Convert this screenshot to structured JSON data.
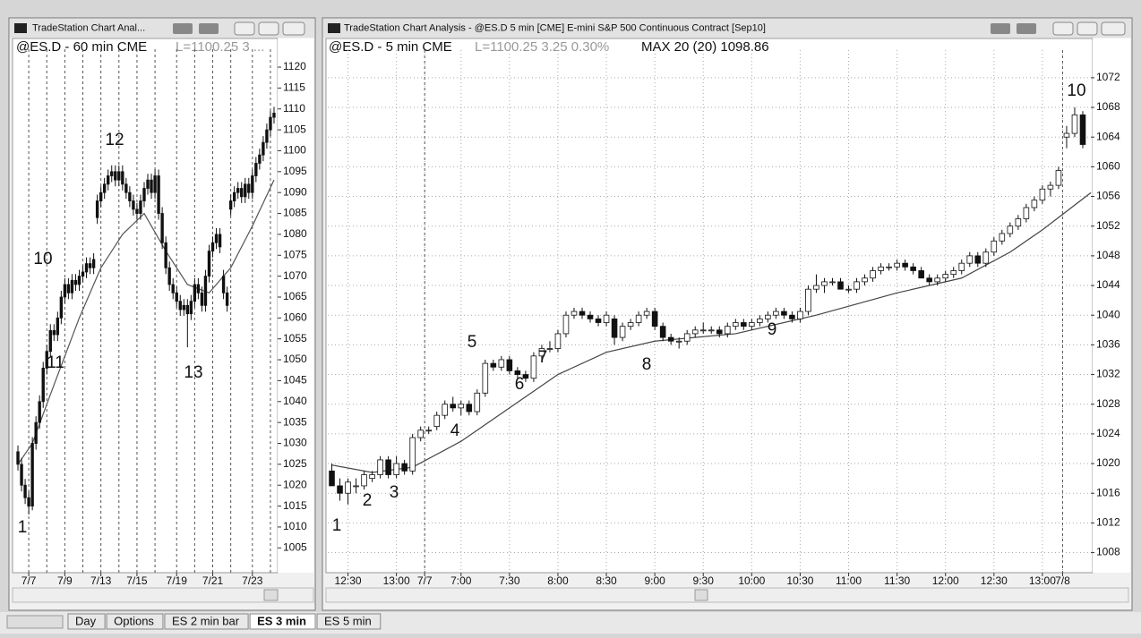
{
  "windows": [
    {
      "title": "TradeStation Chart Anal...",
      "symbol": "@ES.D - 60 min CME",
      "last": "L=1100.25  3 ..."
    },
    {
      "title": "TradeStation Chart Analysis - @ES.D 5 min [CME] E-mini S&P 500 Continuous Contract [Sep10]",
      "symbol": "@ES.D - 5 min CME",
      "last": "L=1100.25  3.25  0.30%",
      "study": "MAX 20 (20) 1098.86"
    }
  ],
  "tabs": [
    "Day",
    "Options",
    "ES 2 min bar",
    "ES 3 min",
    "ES 5 min"
  ],
  "chart_data": [
    {
      "type": "candlestick",
      "hollow_up": false,
      "grid": false,
      "up_color": "#111",
      "down_color": "#111",
      "ma_color": "#555",
      "candles": [
        [
          1028,
          1029.5,
          1023.5,
          1025
        ],
        [
          1025,
          1026.5,
          1018.5,
          1020
        ],
        [
          1020,
          1021.5,
          1015.5,
          1017
        ],
        [
          1017,
          1018.5,
          1013,
          1015
        ],
        [
          1015,
          1031.5,
          1014,
          1030
        ],
        [
          1030,
          1036.5,
          1028.5,
          1035
        ],
        [
          1035,
          1041.5,
          1033.5,
          1040
        ],
        [
          1040,
          1049.5,
          1038.5,
          1048
        ],
        [
          1048,
          1053.5,
          1046.5,
          1052
        ],
        [
          1052,
          1058.5,
          1050.5,
          1057
        ],
        [
          1057,
          1058.5,
          1054.5,
          1056
        ],
        [
          1056,
          1061.5,
          1054.5,
          1060
        ],
        [
          1060,
          1066.5,
          1058.5,
          1065
        ],
        [
          1065,
          1069.5,
          1063.5,
          1068
        ],
        [
          1068,
          1069.5,
          1064.5,
          1066
        ],
        [
          1066,
          1070.5,
          1064.5,
          1069
        ],
        [
          1069,
          1070.5,
          1066.5,
          1068
        ],
        [
          1068,
          1071.5,
          1066.5,
          1070
        ],
        [
          1070,
          1072.5,
          1068.5,
          1071
        ],
        [
          1071,
          1074.5,
          1069.5,
          1073
        ],
        [
          1073,
          1074.5,
          1070.5,
          1072
        ],
        [
          1072,
          1075.5,
          1070.5,
          1074
        ],
        [
          1084,
          1089.5,
          1082.5,
          1088
        ],
        [
          1088,
          1091.5,
          1086.5,
          1090
        ],
        [
          1090,
          1093.5,
          1088.5,
          1092
        ],
        [
          1092,
          1095.5,
          1090.5,
          1094
        ],
        [
          1094,
          1096.5,
          1092.5,
          1095
        ],
        [
          1095,
          1096.5,
          1091.5,
          1093
        ],
        [
          1093,
          1096.5,
          1091.5,
          1095
        ],
        [
          1095,
          1096.5,
          1090.5,
          1092
        ],
        [
          1092,
          1093.5,
          1088.5,
          1090
        ],
        [
          1090,
          1091.5,
          1086.5,
          1088
        ],
        [
          1088,
          1089.5,
          1084.5,
          1086
        ],
        [
          1086,
          1087.5,
          1083.5,
          1085
        ],
        [
          1085,
          1089.5,
          1083.5,
          1088
        ],
        [
          1088,
          1092.5,
          1086.5,
          1091
        ],
        [
          1091,
          1094.5,
          1089.5,
          1093
        ],
        [
          1093,
          1094.5,
          1088.5,
          1090
        ],
        [
          1090,
          1095.5,
          1088.5,
          1094
        ],
        [
          1094,
          1095.5,
          1083.5,
          1085
        ],
        [
          1085,
          1086.5,
          1076.5,
          1078
        ],
        [
          1078,
          1079.5,
          1070.5,
          1072
        ],
        [
          1072,
          1073.5,
          1066.5,
          1068
        ],
        [
          1068,
          1069.5,
          1064.5,
          1066
        ],
        [
          1066,
          1067.5,
          1062.5,
          1064
        ],
        [
          1064,
          1065.5,
          1060.5,
          1062
        ],
        [
          1062,
          1064.5,
          1060.5,
          1063
        ],
        [
          1063,
          1064.5,
          1053,
          1061
        ],
        [
          1061,
          1065.5,
          1059.5,
          1064
        ],
        [
          1064,
          1069.5,
          1062.5,
          1068
        ],
        [
          1068,
          1069.5,
          1064.5,
          1066
        ],
        [
          1066,
          1067.5,
          1061.5,
          1063
        ],
        [
          1063,
          1071.5,
          1061.5,
          1070
        ],
        [
          1070,
          1077.5,
          1068.5,
          1076
        ],
        [
          1076,
          1079.5,
          1074.5,
          1078
        ],
        [
          1078,
          1081.5,
          1076.5,
          1080
        ],
        [
          1080,
          1081.5,
          1075.5,
          1077
        ],
        [
          1070,
          1071.5,
          1064.5,
          1066
        ],
        [
          1066,
          1067.5,
          1061.5,
          1063
        ],
        [
          1086,
          1089.5,
          1084.5,
          1088
        ],
        [
          1088,
          1091.5,
          1086.5,
          1090
        ],
        [
          1090,
          1092.5,
          1088.5,
          1091
        ],
        [
          1091,
          1092.5,
          1087.5,
          1089
        ],
        [
          1089,
          1093.5,
          1087.5,
          1092
        ],
        [
          1092,
          1093.5,
          1088.5,
          1090
        ],
        [
          1090,
          1095.5,
          1088.5,
          1094
        ],
        [
          1094,
          1098.5,
          1092.5,
          1097
        ],
        [
          1097,
          1100.5,
          1095.5,
          1099
        ],
        [
          1099,
          1103.5,
          1097.5,
          1102
        ],
        [
          1102,
          1106.5,
          1100.5,
          1105
        ],
        [
          1105,
          1109.5,
          1103.5,
          1108
        ],
        [
          1108,
          1110.5,
          1106.5,
          1109
        ]
      ],
      "ma": {
        "x": [
          0,
          4,
          10,
          17,
          23,
          29,
          35,
          41,
          47,
          53,
          59,
          65,
          71
        ],
        "values": [
          1025,
          1030,
          1044,
          1060,
          1072,
          1080,
          1085,
          1076,
          1068,
          1066,
          1072,
          1082,
          1093
        ]
      },
      "xlim": [
        -1,
        72
      ],
      "xticks": [
        {
          "value": 3,
          "label": "7/7"
        },
        {
          "value": 13,
          "label": "7/9"
        },
        {
          "value": 23,
          "label": "7/13"
        },
        {
          "value": 33,
          "label": "7/15"
        },
        {
          "value": 44,
          "label": "7/19"
        },
        {
          "value": 54,
          "label": "7/21"
        },
        {
          "value": 65,
          "label": "7/23"
        }
      ],
      "separators": [
        3,
        8,
        13,
        18,
        23,
        28,
        33,
        38,
        44,
        49,
        54,
        59,
        65,
        70
      ],
      "ylim": [
        1001,
        1123
      ],
      "yticks": [
        1005,
        1010,
        1015,
        1020,
        1025,
        1030,
        1035,
        1040,
        1045,
        1050,
        1055,
        1060,
        1065,
        1070,
        1075,
        1080,
        1085,
        1090,
        1095,
        1100,
        1105,
        1110,
        1115,
        1120
      ],
      "annotations": [
        "1",
        "10",
        "11",
        "12",
        "13"
      ]
    },
    {
      "type": "candlestick",
      "hollow_up": true,
      "grid": true,
      "up_color": "#ffffff",
      "down_color": "#111",
      "ma_color": "#444",
      "candles": [
        [
          1019,
          1020,
          1017,
          1017
        ],
        [
          1017,
          1018,
          1015,
          1016
        ],
        [
          1016,
          1018,
          1014.5,
          1017.5
        ],
        [
          1017,
          1018,
          1016,
          1017
        ],
        [
          1017,
          1019,
          1016.5,
          1018.5
        ],
        [
          1018,
          1019,
          1017.5,
          1018.5
        ],
        [
          1018.5,
          1021,
          1018,
          1020.5
        ],
        [
          1020.5,
          1021,
          1018,
          1018.5
        ],
        [
          1018.5,
          1021,
          1018,
          1020
        ],
        [
          1020,
          1020.5,
          1018.5,
          1019
        ],
        [
          1019,
          1024,
          1018.5,
          1023.5
        ],
        [
          1023.5,
          1025,
          1023,
          1024.5
        ],
        [
          1024.5,
          1025,
          1024,
          1024.5
        ],
        [
          1025,
          1027,
          1024.5,
          1026.5
        ],
        [
          1026.5,
          1028.5,
          1026,
          1028
        ],
        [
          1028,
          1029,
          1027,
          1027.5
        ],
        [
          1027.5,
          1028.5,
          1026.5,
          1028
        ],
        [
          1028,
          1028.5,
          1026.5,
          1027
        ],
        [
          1027,
          1030,
          1026.5,
          1029.5
        ],
        [
          1029.5,
          1034,
          1029,
          1033.5
        ],
        [
          1033.5,
          1034,
          1032.5,
          1033
        ],
        [
          1033,
          1034.5,
          1032.5,
          1034
        ],
        [
          1034,
          1034.5,
          1032,
          1032.5
        ],
        [
          1032.5,
          1033,
          1031.5,
          1032
        ],
        [
          1032,
          1032.5,
          1031,
          1031.5
        ],
        [
          1031.5,
          1035,
          1031,
          1034.5
        ],
        [
          1034.5,
          1036,
          1034,
          1035.5
        ],
        [
          1035.5,
          1036.5,
          1035,
          1035.5
        ],
        [
          1035.5,
          1038,
          1035,
          1037.5
        ],
        [
          1037.5,
          1040.5,
          1037,
          1040
        ],
        [
          1040,
          1041,
          1039.5,
          1040.5
        ],
        [
          1040.5,
          1041,
          1039.5,
          1040
        ],
        [
          1040,
          1040.5,
          1039,
          1039.5
        ],
        [
          1039.5,
          1040,
          1038.5,
          1039
        ],
        [
          1039,
          1040.5,
          1038.5,
          1040
        ],
        [
          1039.5,
          1040,
          1036,
          1037
        ],
        [
          1037,
          1039,
          1036.5,
          1038.5
        ],
        [
          1038.5,
          1039.5,
          1038,
          1039
        ],
        [
          1039,
          1040.5,
          1038.5,
          1040
        ],
        [
          1040,
          1041,
          1039.5,
          1040.5
        ],
        [
          1040.5,
          1041,
          1038,
          1038.5
        ],
        [
          1038.5,
          1039,
          1036.5,
          1037
        ],
        [
          1037,
          1037.5,
          1036,
          1036.5
        ],
        [
          1036.5,
          1037,
          1035.5,
          1036.5
        ],
        [
          1036.5,
          1038,
          1036,
          1037.5
        ],
        [
          1037.5,
          1038.5,
          1037,
          1038
        ],
        [
          1038,
          1039,
          1037.5,
          1038
        ],
        [
          1038,
          1038.5,
          1037.5,
          1038
        ],
        [
          1038,
          1038.5,
          1037,
          1037.5
        ],
        [
          1037.5,
          1039,
          1037,
          1038.5
        ],
        [
          1038.5,
          1039.5,
          1038,
          1039
        ],
        [
          1039,
          1039.5,
          1038,
          1038.5
        ],
        [
          1038.5,
          1039.5,
          1038,
          1039
        ],
        [
          1039,
          1040,
          1038.5,
          1039.5
        ],
        [
          1039.5,
          1040.5,
          1039,
          1040
        ],
        [
          1040,
          1041,
          1039.5,
          1040.5
        ],
        [
          1040.5,
          1041,
          1039.5,
          1040
        ],
        [
          1040,
          1040.5,
          1039,
          1039.5
        ],
        [
          1039.5,
          1041,
          1039,
          1040.5
        ],
        [
          1040.5,
          1044,
          1040,
          1043.5
        ],
        [
          1043.5,
          1045.5,
          1043,
          1044
        ],
        [
          1044,
          1045,
          1043,
          1044.5
        ],
        [
          1044.5,
          1045,
          1044,
          1044.5
        ],
        [
          1044.5,
          1045,
          1043.5,
          1043.5
        ],
        [
          1043.5,
          1044,
          1043,
          1043.5
        ],
        [
          1043.5,
          1045,
          1043,
          1044.5
        ],
        [
          1044.5,
          1045.5,
          1044,
          1045
        ],
        [
          1045,
          1046.5,
          1044.5,
          1046
        ],
        [
          1046,
          1047,
          1045.5,
          1046.5
        ],
        [
          1046.5,
          1047,
          1046,
          1046.5
        ],
        [
          1046.5,
          1047.5,
          1046,
          1047
        ],
        [
          1047,
          1047.5,
          1046,
          1046.5
        ],
        [
          1046.5,
          1047,
          1045.5,
          1046
        ],
        [
          1046,
          1046.5,
          1045,
          1045
        ],
        [
          1045,
          1045.5,
          1044,
          1044.5
        ],
        [
          1044.5,
          1045.5,
          1044,
          1045
        ],
        [
          1045,
          1046,
          1044.5,
          1045.5
        ],
        [
          1045.5,
          1046.5,
          1045,
          1046
        ],
        [
          1046,
          1047.5,
          1045.5,
          1047
        ],
        [
          1047,
          1048.5,
          1046.5,
          1048
        ],
        [
          1048,
          1048.5,
          1046.5,
          1047
        ],
        [
          1047,
          1049,
          1046.5,
          1048.5
        ],
        [
          1048.5,
          1050.5,
          1048,
          1050
        ],
        [
          1050,
          1051.5,
          1049.5,
          1051
        ],
        [
          1051,
          1052.5,
          1050.5,
          1052
        ],
        [
          1052,
          1053.5,
          1051.5,
          1053
        ],
        [
          1053,
          1055,
          1052.5,
          1054.5
        ],
        [
          1054.5,
          1056,
          1054,
          1055.5
        ],
        [
          1055.5,
          1057.5,
          1055,
          1057
        ],
        [
          1057,
          1058,
          1056,
          1057.5
        ],
        [
          1057.5,
          1060,
          1057,
          1059.5
        ],
        [
          1064,
          1065.5,
          1062.5,
          1064.5
        ],
        [
          1064.5,
          1068,
          1064,
          1067
        ],
        [
          1067,
          1067.5,
          1062.5,
          1063
        ]
      ],
      "ma": {
        "x": [
          0,
          5,
          10,
          16,
          22,
          28,
          34,
          40,
          50,
          60,
          70,
          78,
          84,
          88,
          91,
          94
        ],
        "values": [
          1019.8,
          1018.8,
          1019.5,
          1023,
          1027.5,
          1032,
          1035,
          1036.5,
          1037.5,
          1040,
          1043,
          1045,
          1048.5,
          1051.5,
          1054,
          1056.5
        ]
      },
      "xlim": [
        -0.5,
        94
      ],
      "xticks": [
        {
          "value": 2,
          "label": "12:30"
        },
        {
          "value": 8,
          "label": "13:00"
        },
        {
          "value": 11.5,
          "label": "7/7"
        },
        {
          "value": 16,
          "label": "7:00"
        },
        {
          "value": 22,
          "label": "7:30"
        },
        {
          "value": 28,
          "label": "8:00"
        },
        {
          "value": 34,
          "label": "8:30"
        },
        {
          "value": 40,
          "label": "9:00"
        },
        {
          "value": 46,
          "label": "9:30"
        },
        {
          "value": 52,
          "label": "10:00"
        },
        {
          "value": 58,
          "label": "10:30"
        },
        {
          "value": 64,
          "label": "11:00"
        },
        {
          "value": 70,
          "label": "11:30"
        },
        {
          "value": 76,
          "label": "12:00"
        },
        {
          "value": 82,
          "label": "12:30"
        },
        {
          "value": 88,
          "label": "13:00"
        },
        {
          "value": 90.5,
          "label": "7/8"
        }
      ],
      "separators": [
        11.5,
        90.5
      ],
      "ylim": [
        1006.5,
        1075
      ],
      "yticks": [
        1008,
        1012,
        1016,
        1020,
        1024,
        1028,
        1032,
        1036,
        1040,
        1044,
        1048,
        1052,
        1056,
        1060,
        1064,
        1068,
        1072
      ],
      "annotations": [
        "1",
        "2",
        "3",
        "4",
        "5",
        "6",
        "7",
        "8",
        "9",
        "10"
      ]
    }
  ]
}
